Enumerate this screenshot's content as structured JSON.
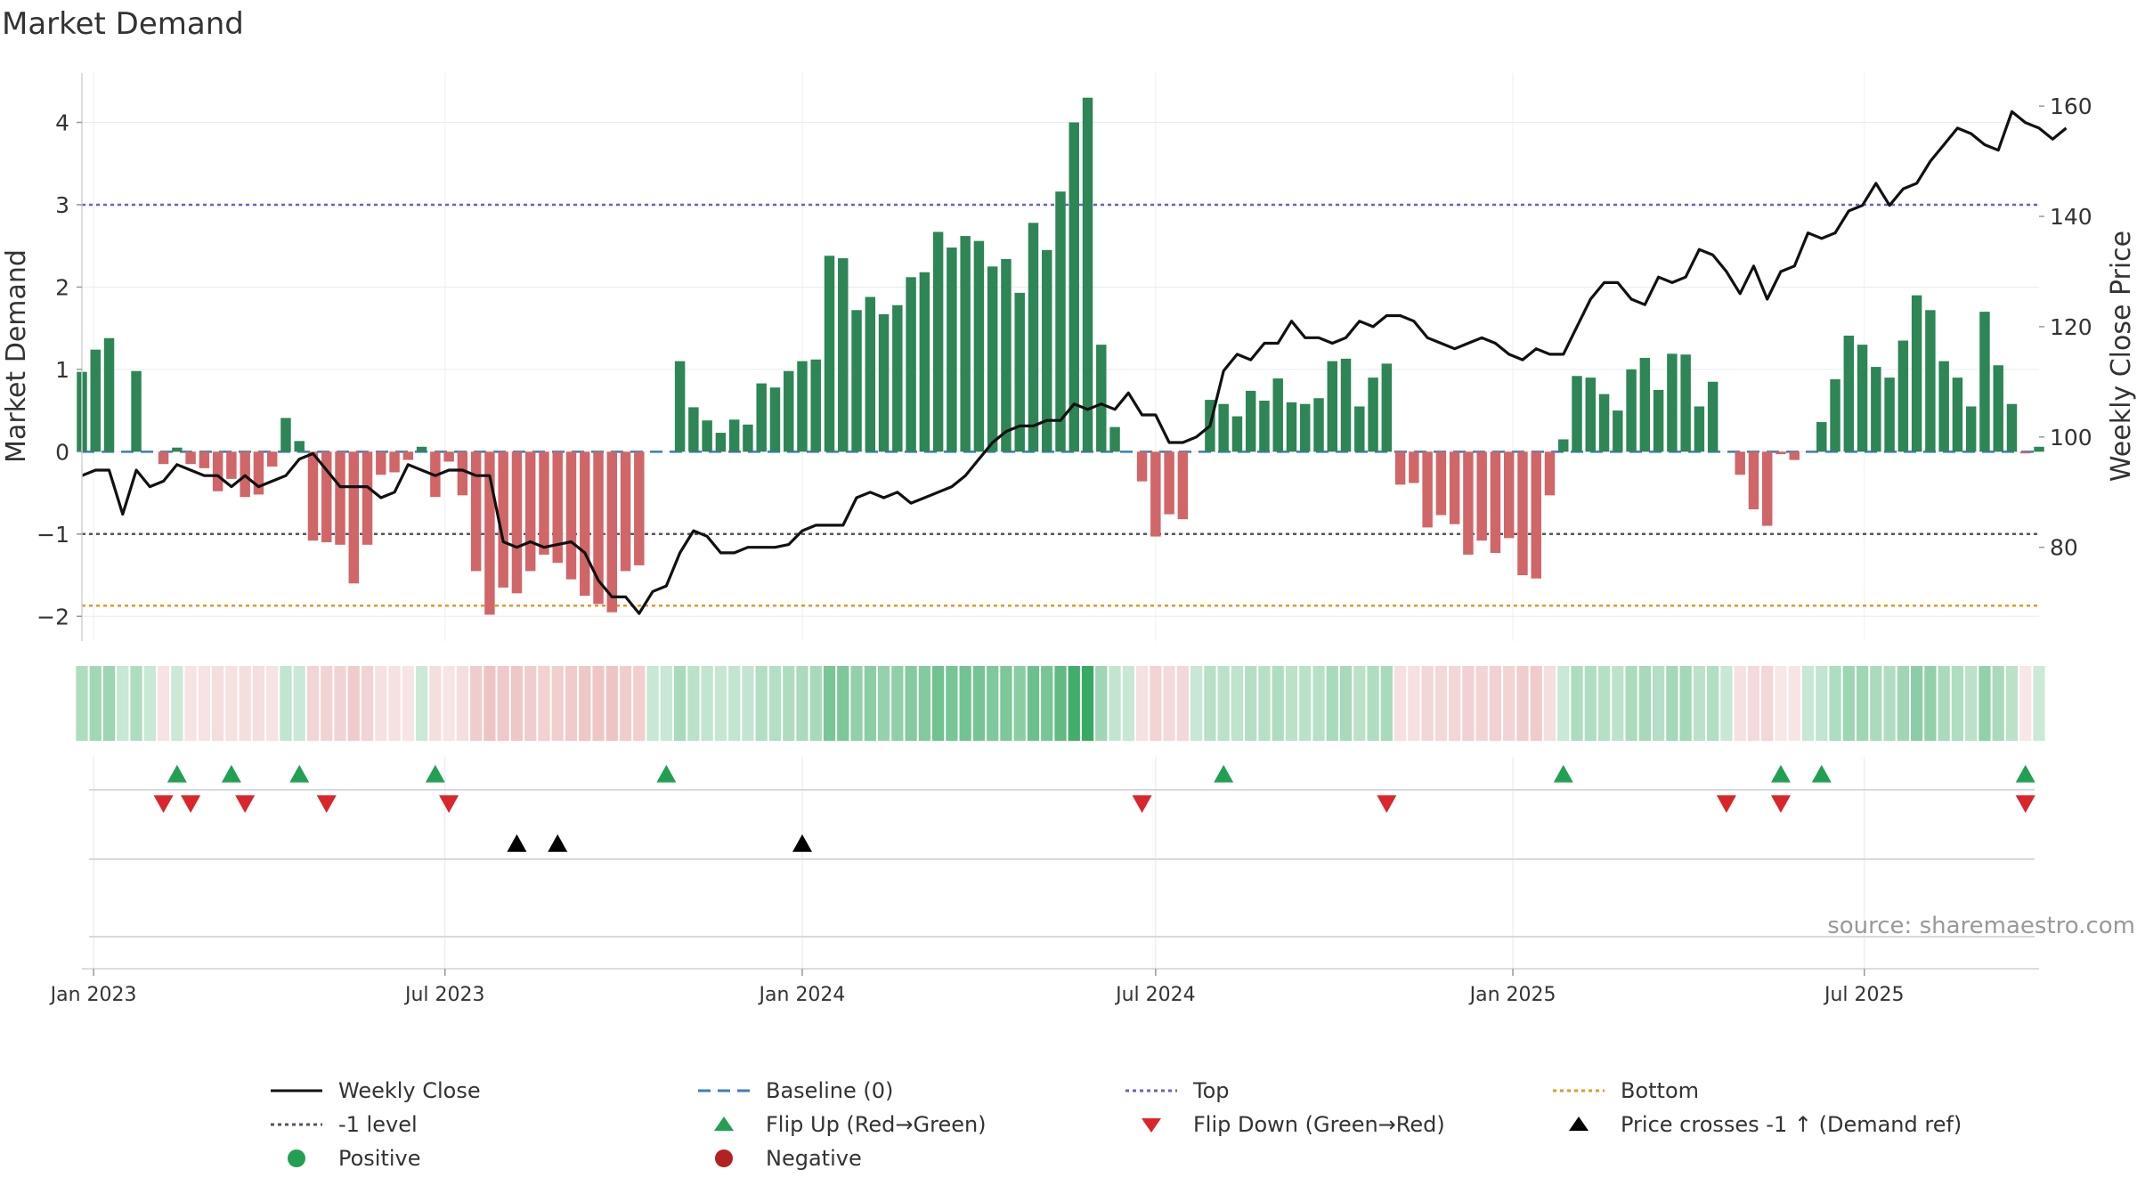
{
  "chart_data": {
    "type": "bar+line",
    "title": "Market Demand",
    "ylabel_left": "Market Demand",
    "ylabel_right": "Weekly Close Price",
    "ylim_left": [
      -2.3,
      4.6
    ],
    "ylim_right": [
      63,
      166
    ],
    "yticks_left": [
      -2,
      -1,
      0,
      1,
      2,
      3,
      4
    ],
    "ytick_labels_left": [
      "−2",
      "−1",
      "0",
      "1",
      "2",
      "3",
      "4"
    ],
    "yticks_right": [
      80,
      100,
      120,
      140,
      160
    ],
    "ytick_labels_right": [
      "80",
      "100",
      "120",
      "140",
      "160"
    ],
    "x_start": "2022-12-26",
    "x_end": "2025-09-29",
    "x_ticks": [
      {
        "date": "2023-01-01",
        "label": "Jan 2023"
      },
      {
        "date": "2023-07-01",
        "label": "Jul 2023"
      },
      {
        "date": "2024-01-01",
        "label": "Jan 2024"
      },
      {
        "date": "2024-07-01",
        "label": "Jul 2024"
      },
      {
        "date": "2025-01-01",
        "label": "Jan 2025"
      },
      {
        "date": "2025-07-01",
        "label": "Jul 2025"
      }
    ],
    "first_week": "2022-12-26",
    "demand": [
      0.97,
      1.24,
      1.38,
      0.0,
      0.98,
      0.0,
      -0.15,
      0.05,
      -0.15,
      -0.2,
      -0.48,
      -0.33,
      -0.55,
      -0.52,
      -0.18,
      0.41,
      0.13,
      -1.08,
      -1.1,
      -1.13,
      -1.6,
      -1.13,
      -0.28,
      -0.25,
      -0.1,
      0.06,
      -0.55,
      -0.12,
      -0.53,
      -1.45,
      -1.98,
      -1.65,
      -1.72,
      -1.45,
      -1.25,
      -1.35,
      -1.55,
      -1.75,
      -1.85,
      -1.95,
      -1.45,
      -1.38,
      0.0,
      0.0,
      1.1,
      0.54,
      0.38,
      0.23,
      0.39,
      0.33,
      0.83,
      0.78,
      0.98,
      1.1,
      1.12,
      2.38,
      2.35,
      1.72,
      1.88,
      1.67,
      1.78,
      2.12,
      2.18,
      2.67,
      2.48,
      2.62,
      2.56,
      2.25,
      2.34,
      1.93,
      2.78,
      2.45,
      3.16,
      4.0,
      4.3,
      1.3,
      0.3,
      0.0,
      -0.36,
      -1.03,
      -0.76,
      -0.82,
      0.0,
      0.63,
      0.58,
      0.43,
      0.74,
      0.62,
      0.89,
      0.6,
      0.58,
      0.65,
      1.1,
      1.13,
      0.55,
      0.9,
      1.07,
      -0.4,
      -0.38,
      -0.92,
      -0.77,
      -0.88,
      -1.25,
      -1.08,
      -1.23,
      -1.05,
      -1.5,
      -1.54,
      -0.53,
      0.15,
      0.92,
      0.9,
      0.7,
      0.5,
      1.0,
      1.14,
      0.75,
      1.19,
      1.18,
      0.55,
      0.85,
      0.0,
      -0.28,
      -0.7,
      -0.9,
      -0.03,
      -0.1,
      0.0,
      0.36,
      0.88,
      1.41,
      1.3,
      1.03,
      0.9,
      1.35,
      1.9,
      1.72,
      1.1,
      0.9,
      0.55,
      1.7,
      1.05,
      0.58,
      -0.02,
      0.06
    ],
    "weekly_close": [
      93,
      94,
      94,
      86,
      94,
      91,
      92,
      95,
      94,
      93,
      93,
      91,
      93,
      91,
      92,
      93,
      96,
      97,
      94,
      91,
      91,
      91,
      89,
      90,
      95,
      94,
      93,
      94,
      94,
      93,
      93,
      81,
      80,
      81,
      80,
      80.5,
      81,
      79,
      74,
      71,
      71,
      68,
      72,
      73,
      79,
      83,
      82,
      79,
      79,
      80,
      80,
      80,
      80.5,
      83,
      84,
      84,
      84,
      89,
      90,
      89,
      90,
      88,
      89,
      90,
      91,
      93,
      96,
      99,
      101,
      102,
      102,
      103,
      103,
      106,
      105,
      106,
      105,
      108,
      104,
      104,
      99,
      99,
      100,
      102,
      112,
      115,
      114,
      117,
      117,
      121,
      118,
      118,
      117,
      118,
      121,
      120,
      122,
      122,
      121,
      118,
      117,
      116,
      117,
      118,
      117,
      115,
      114,
      116,
      115,
      115,
      120,
      125,
      128,
      128,
      125,
      124,
      129,
      128,
      129,
      134,
      133,
      130,
      126,
      131,
      125,
      130,
      131,
      137,
      136,
      137,
      141,
      142,
      146,
      142,
      145,
      146,
      150,
      153,
      156,
      155,
      153,
      152,
      159,
      157,
      156,
      154,
      156
    ]
  },
  "markers": {
    "flip_up_weeks": [
      7,
      11,
      16,
      26,
      43,
      84,
      109,
      125,
      128,
      143
    ],
    "flip_down_weeks": [
      6,
      8,
      12,
      18,
      27,
      78,
      96,
      121,
      125,
      143
    ],
    "price_cross_weeks": [
      32,
      35,
      53
    ]
  },
  "source": "source: sharemaestro.com",
  "legend": [
    {
      "label": "Weekly Close",
      "symbol": "line-black"
    },
    {
      "label": "Baseline (0)",
      "symbol": "dash-blue"
    },
    {
      "label": "Top",
      "symbol": "dot-purple"
    },
    {
      "label": "Bottom",
      "symbol": "dot-orange"
    },
    {
      "label": "-1 level",
      "symbol": "dot-gray"
    },
    {
      "label": "Flip Up (Red→Green)",
      "symbol": "tri-up-green"
    },
    {
      "label": "Flip Down (Green→Red)",
      "symbol": "tri-down-red"
    },
    {
      "label": "Price crosses -1 ↑ (Demand ref)",
      "symbol": "tri-up-black"
    },
    {
      "label": "Positive",
      "symbol": "dot-green"
    },
    {
      "label": "Negative",
      "symbol": "dot-red"
    }
  ],
  "colors": {
    "positive": "#2e8555",
    "negative": "#d06668",
    "price": "#111111",
    "baseline": "#3a7dbf",
    "top": "#6a5fd0",
    "bottom": "#e8961e",
    "minus_one": "#555566",
    "flip_up": "#22a052",
    "flip_down": "#d9262c",
    "cross": "#000000"
  },
  "levels": {
    "top": 3,
    "bottom": -1.87,
    "minus_one": -1,
    "baseline": 0
  }
}
